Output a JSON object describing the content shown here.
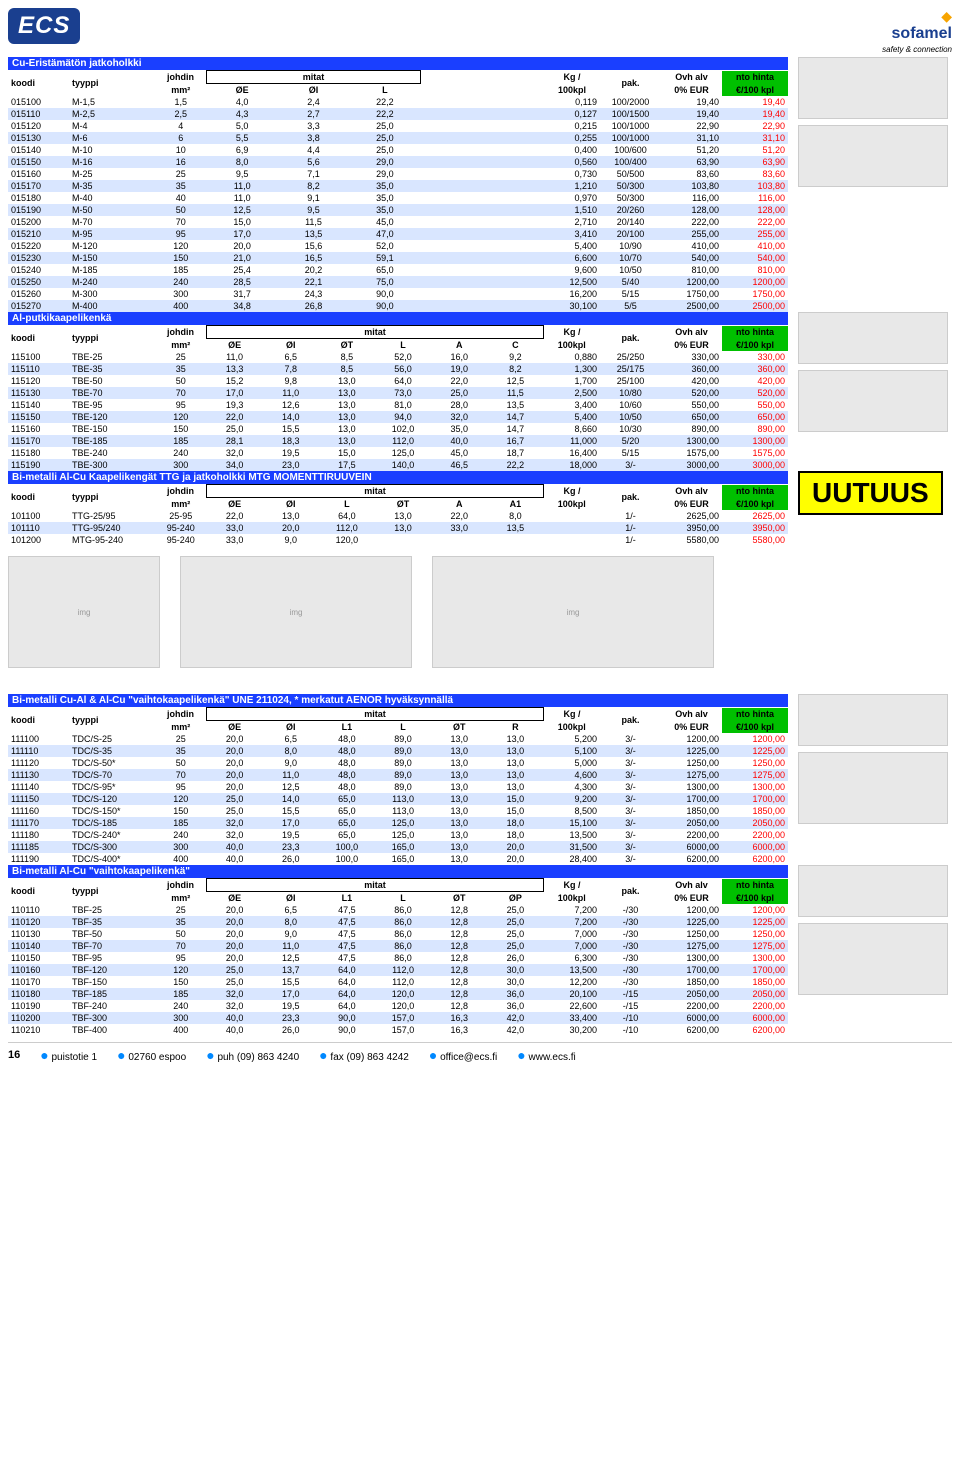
{
  "logos": {
    "left": "ECS",
    "right_brand": "sofamel",
    "right_tag": "safety & connection"
  },
  "uutuus": "UUTUUS",
  "page_number": "16",
  "footer": {
    "addr": "puistotie 1",
    "post": "02760 espoo",
    "tel": "puh (09) 863 4240",
    "fax": "fax (09) 863 4242",
    "email": "office@ecs.fi",
    "web": "www.ecs.fi"
  },
  "headers": {
    "koodi": "koodi",
    "tyyppi": "tyyppi",
    "johdin": "johdin",
    "mm2": "mm²",
    "mitat": "mitat",
    "kg": "Kg /",
    "kg2": "100kpl",
    "pak": "pak.",
    "ovh1": "Ovh alv",
    "ovh2": "0% EUR",
    "nto1": "nto hinta",
    "nto2": "€/100 kpl",
    "OE": "ØE",
    "OI": "ØI",
    "L": "L",
    "OT": "ØT",
    "A": "A",
    "C": "C",
    "A1": "A1",
    "L1": "L1",
    "R": "R",
    "OP": "ØP"
  },
  "sections": [
    {
      "title": "Cu-Eristämätön jatkoholkki",
      "dim_cols": [
        "OE",
        "OI",
        "L"
      ],
      "rows": [
        [
          "015100",
          "M-1,5",
          "1,5",
          "4,0",
          "2,4",
          "22,2",
          "",
          "",
          "",
          "0,119",
          "100/2000",
          "19,40",
          "19,40"
        ],
        [
          "015110",
          "M-2,5",
          "2,5",
          "4,3",
          "2,7",
          "22,2",
          "",
          "",
          "",
          "0,127",
          "100/1500",
          "19,40",
          "19,40"
        ],
        [
          "015120",
          "M-4",
          "4",
          "5,0",
          "3,3",
          "25,0",
          "",
          "",
          "",
          "0,215",
          "100/1000",
          "22,90",
          "22,90"
        ],
        [
          "015130",
          "M-6",
          "6",
          "5,5",
          "3,8",
          "25,0",
          "",
          "",
          "",
          "0,255",
          "100/1000",
          "31,10",
          "31,10"
        ],
        [
          "015140",
          "M-10",
          "10",
          "6,9",
          "4,4",
          "25,0",
          "",
          "",
          "",
          "0,400",
          "100/600",
          "51,20",
          "51,20"
        ],
        [
          "015150",
          "M-16",
          "16",
          "8,0",
          "5,6",
          "29,0",
          "",
          "",
          "",
          "0,560",
          "100/400",
          "63,90",
          "63,90"
        ],
        [
          "015160",
          "M-25",
          "25",
          "9,5",
          "7,1",
          "29,0",
          "",
          "",
          "",
          "0,730",
          "50/500",
          "83,60",
          "83,60"
        ],
        [
          "015170",
          "M-35",
          "35",
          "11,0",
          "8,2",
          "35,0",
          "",
          "",
          "",
          "1,210",
          "50/300",
          "103,80",
          "103,80"
        ],
        [
          "015180",
          "M-40",
          "40",
          "11,0",
          "9,1",
          "35,0",
          "",
          "",
          "",
          "0,970",
          "50/300",
          "116,00",
          "116,00"
        ],
        [
          "015190",
          "M-50",
          "50",
          "12,5",
          "9,5",
          "35,0",
          "",
          "",
          "",
          "1,510",
          "20/260",
          "128,00",
          "128,00"
        ],
        [
          "015200",
          "M-70",
          "70",
          "15,0",
          "11,5",
          "45,0",
          "",
          "",
          "",
          "2,710",
          "20/140",
          "222,00",
          "222,00"
        ],
        [
          "015210",
          "M-95",
          "95",
          "17,0",
          "13,5",
          "47,0",
          "",
          "",
          "",
          "3,410",
          "20/100",
          "255,00",
          "255,00"
        ],
        [
          "015220",
          "M-120",
          "120",
          "20,0",
          "15,6",
          "52,0",
          "",
          "",
          "",
          "5,400",
          "10/90",
          "410,00",
          "410,00"
        ],
        [
          "015230",
          "M-150",
          "150",
          "21,0",
          "16,5",
          "59,1",
          "",
          "",
          "",
          "6,600",
          "10/70",
          "540,00",
          "540,00"
        ],
        [
          "015240",
          "M-185",
          "185",
          "25,4",
          "20,2",
          "65,0",
          "",
          "",
          "",
          "9,600",
          "10/50",
          "810,00",
          "810,00"
        ],
        [
          "015250",
          "M-240",
          "240",
          "28,5",
          "22,1",
          "75,0",
          "",
          "",
          "",
          "12,500",
          "5/40",
          "1200,00",
          "1200,00"
        ],
        [
          "015260",
          "M-300",
          "300",
          "31,7",
          "24,3",
          "90,0",
          "",
          "",
          "",
          "16,200",
          "5/15",
          "1750,00",
          "1750,00"
        ],
        [
          "015270",
          "M-400",
          "400",
          "34,8",
          "26,8",
          "90,0",
          "",
          "",
          "",
          "30,100",
          "5/5",
          "2500,00",
          "2500,00"
        ]
      ]
    },
    {
      "title": "Al-putkikaapelikenkä",
      "dim_cols": [
        "OE",
        "OI",
        "OT",
        "L",
        "A",
        "C"
      ],
      "rows": [
        [
          "115100",
          "TBE-25",
          "25",
          "11,0",
          "6,5",
          "8,5",
          "52,0",
          "16,0",
          "9,2",
          "0,880",
          "25/250",
          "330,00",
          "330,00"
        ],
        [
          "115110",
          "TBE-35",
          "35",
          "13,3",
          "7,8",
          "8,5",
          "56,0",
          "19,0",
          "8,2",
          "1,300",
          "25/175",
          "360,00",
          "360,00"
        ],
        [
          "115120",
          "TBE-50",
          "50",
          "15,2",
          "9,8",
          "13,0",
          "64,0",
          "22,0",
          "12,5",
          "1,700",
          "25/100",
          "420,00",
          "420,00"
        ],
        [
          "115130",
          "TBE-70",
          "70",
          "17,0",
          "11,0",
          "13,0",
          "73,0",
          "25,0",
          "11,5",
          "2,500",
          "10/80",
          "520,00",
          "520,00"
        ],
        [
          "115140",
          "TBE-95",
          "95",
          "19,3",
          "12,6",
          "13,0",
          "81,0",
          "28,0",
          "13,5",
          "3,400",
          "10/60",
          "550,00",
          "550,00"
        ],
        [
          "115150",
          "TBE-120",
          "120",
          "22,0",
          "14,0",
          "13,0",
          "94,0",
          "32,0",
          "14,7",
          "5,400",
          "10/50",
          "650,00",
          "650,00"
        ],
        [
          "115160",
          "TBE-150",
          "150",
          "25,0",
          "15,5",
          "13,0",
          "102,0",
          "35,0",
          "14,7",
          "8,660",
          "10/30",
          "890,00",
          "890,00"
        ],
        [
          "115170",
          "TBE-185",
          "185",
          "28,1",
          "18,3",
          "13,0",
          "112,0",
          "40,0",
          "16,7",
          "11,000",
          "5/20",
          "1300,00",
          "1300,00"
        ],
        [
          "115180",
          "TBE-240",
          "240",
          "32,0",
          "19,5",
          "15,0",
          "125,0",
          "45,0",
          "18,7",
          "16,400",
          "5/15",
          "1575,00",
          "1575,00"
        ],
        [
          "115190",
          "TBE-300",
          "300",
          "34,0",
          "23,0",
          "17,5",
          "140,0",
          "46,5",
          "22,2",
          "18,000",
          "3/-",
          "3000,00",
          "3000,00"
        ]
      ]
    },
    {
      "title": "Bi-metalli Al-Cu Kaapelikengät TTG ja jatkoholkki MTG MOMENTTIRUUVEIN",
      "dim_cols": [
        "OE",
        "OI",
        "L",
        "OT",
        "A",
        "A1"
      ],
      "rows": [
        [
          "101100",
          "TTG-25/95",
          "25-95",
          "22,0",
          "13,0",
          "64,0",
          "13,0",
          "22,0",
          "8,0",
          "",
          "1/-",
          "2625,00",
          "2625,00"
        ],
        [
          "101110",
          "TTG-95/240",
          "95-240",
          "33,0",
          "20,0",
          "112,0",
          "13,0",
          "33,0",
          "13,5",
          "",
          "1/-",
          "3950,00",
          "3950,00"
        ],
        [
          "101200",
          "MTG-95-240",
          "95-240",
          "33,0",
          "9,0",
          "120,0",
          "",
          "",
          "",
          "",
          "1/-",
          "5580,00",
          "5580,00"
        ]
      ]
    },
    {
      "title": "Bi-metalli Cu-Al & Al-Cu \"vaihtokaapelikenkä\" UNE 211024, * merkatut AENOR hyväksynnällä",
      "dim_cols": [
        "OE",
        "OI",
        "L1",
        "L",
        "OT",
        "R"
      ],
      "rows": [
        [
          "111100",
          "TDC/S-25",
          "25",
          "20,0",
          "6,5",
          "48,0",
          "89,0",
          "13,0",
          "13,0",
          "5,200",
          "3/-",
          "1200,00",
          "1200,00"
        ],
        [
          "111110",
          "TDC/S-35",
          "35",
          "20,0",
          "8,0",
          "48,0",
          "89,0",
          "13,0",
          "13,0",
          "5,100",
          "3/-",
          "1225,00",
          "1225,00"
        ],
        [
          "111120",
          "TDC/S-50*",
          "50",
          "20,0",
          "9,0",
          "48,0",
          "89,0",
          "13,0",
          "13,0",
          "5,000",
          "3/-",
          "1250,00",
          "1250,00"
        ],
        [
          "111130",
          "TDC/S-70",
          "70",
          "20,0",
          "11,0",
          "48,0",
          "89,0",
          "13,0",
          "13,0",
          "4,600",
          "3/-",
          "1275,00",
          "1275,00"
        ],
        [
          "111140",
          "TDC/S-95*",
          "95",
          "20,0",
          "12,5",
          "48,0",
          "89,0",
          "13,0",
          "13,0",
          "4,300",
          "3/-",
          "1300,00",
          "1300,00"
        ],
        [
          "111150",
          "TDC/S-120",
          "120",
          "25,0",
          "14,0",
          "65,0",
          "113,0",
          "13,0",
          "15,0",
          "9,200",
          "3/-",
          "1700,00",
          "1700,00"
        ],
        [
          "111160",
          "TDC/S-150*",
          "150",
          "25,0",
          "15,5",
          "65,0",
          "113,0",
          "13,0",
          "15,0",
          "8,500",
          "3/-",
          "1850,00",
          "1850,00"
        ],
        [
          "111170",
          "TDC/S-185",
          "185",
          "32,0",
          "17,0",
          "65,0",
          "125,0",
          "13,0",
          "18,0",
          "15,100",
          "3/-",
          "2050,00",
          "2050,00"
        ],
        [
          "111180",
          "TDC/S-240*",
          "240",
          "32,0",
          "19,5",
          "65,0",
          "125,0",
          "13,0",
          "18,0",
          "13,500",
          "3/-",
          "2200,00",
          "2200,00"
        ],
        [
          "111185",
          "TDC/S-300",
          "300",
          "40,0",
          "23,3",
          "100,0",
          "165,0",
          "13,0",
          "20,0",
          "31,500",
          "3/-",
          "6000,00",
          "6000,00"
        ],
        [
          "111190",
          "TDC/S-400*",
          "400",
          "40,0",
          "26,0",
          "100,0",
          "165,0",
          "13,0",
          "20,0",
          "28,400",
          "3/-",
          "6200,00",
          "6200,00"
        ]
      ]
    },
    {
      "title": "Bi-metalli Al-Cu \"vaihtokaapelikenkä\"",
      "dim_cols": [
        "OE",
        "OI",
        "L1",
        "L",
        "OT",
        "OP"
      ],
      "rows": [
        [
          "110110",
          "TBF-25",
          "25",
          "20,0",
          "6,5",
          "47,5",
          "86,0",
          "12,8",
          "25,0",
          "7,200",
          "-/30",
          "1200,00",
          "1200,00"
        ],
        [
          "110120",
          "TBF-35",
          "35",
          "20,0",
          "8,0",
          "47,5",
          "86,0",
          "12,8",
          "25,0",
          "7,200",
          "-/30",
          "1225,00",
          "1225,00"
        ],
        [
          "110130",
          "TBF-50",
          "50",
          "20,0",
          "9,0",
          "47,5",
          "86,0",
          "12,8",
          "25,0",
          "7,000",
          "-/30",
          "1250,00",
          "1250,00"
        ],
        [
          "110140",
          "TBF-70",
          "70",
          "20,0",
          "11,0",
          "47,5",
          "86,0",
          "12,8",
          "25,0",
          "7,000",
          "-/30",
          "1275,00",
          "1275,00"
        ],
        [
          "110150",
          "TBF-95",
          "95",
          "20,0",
          "12,5",
          "47,5",
          "86,0",
          "12,8",
          "26,0",
          "6,300",
          "-/30",
          "1300,00",
          "1300,00"
        ],
        [
          "110160",
          "TBF-120",
          "120",
          "25,0",
          "13,7",
          "64,0",
          "112,0",
          "12,8",
          "30,0",
          "13,500",
          "-/30",
          "1700,00",
          "1700,00"
        ],
        [
          "110170",
          "TBF-150",
          "150",
          "25,0",
          "15,5",
          "64,0",
          "112,0",
          "12,8",
          "30,0",
          "12,200",
          "-/30",
          "1850,00",
          "1850,00"
        ],
        [
          "110180",
          "TBF-185",
          "185",
          "32,0",
          "17,0",
          "64,0",
          "120,0",
          "12,8",
          "36,0",
          "20,100",
          "-/15",
          "2050,00",
          "2050,00"
        ],
        [
          "110190",
          "TBF-240",
          "240",
          "32,0",
          "19,5",
          "64,0",
          "120,0",
          "12,8",
          "36,0",
          "22,600",
          "-/15",
          "2200,00",
          "2200,00"
        ],
        [
          "110200",
          "TBF-300",
          "300",
          "40,0",
          "23,3",
          "90,0",
          "157,0",
          "16,3",
          "42,0",
          "33,400",
          "-/10",
          "6000,00",
          "6000,00"
        ],
        [
          "110210",
          "TBF-400",
          "400",
          "40,0",
          "26,0",
          "90,0",
          "157,0",
          "16,3",
          "42,0",
          "30,200",
          "-/10",
          "6200,00",
          "6200,00"
        ]
      ]
    }
  ]
}
